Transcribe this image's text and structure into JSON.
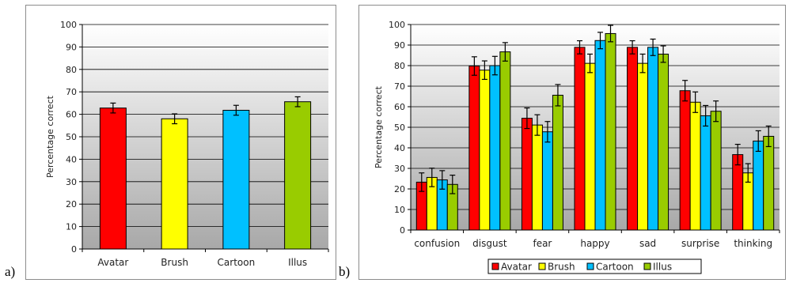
{
  "panel_labels": {
    "a": "a)",
    "b": "b)"
  },
  "chart_data": [
    {
      "type": "bar",
      "ylabel": "Percentage correct",
      "ylim": [
        0,
        100
      ],
      "yticks": [
        0,
        10,
        20,
        30,
        40,
        50,
        60,
        70,
        80,
        90,
        100
      ],
      "grid": true,
      "legend": "none",
      "categories": [
        "Avatar",
        "Brush",
        "Cartoon",
        "Illus"
      ],
      "values": [
        62.8,
        58,
        61.8,
        65.6
      ],
      "errors": [
        2.2,
        2.2,
        2.2,
        2.2
      ],
      "colors": [
        "#ff0000",
        "#ffff00",
        "#00c0ff",
        "#99cc00"
      ]
    },
    {
      "type": "bar",
      "ylabel": "Percentage correct",
      "ylim": [
        0,
        100
      ],
      "yticks": [
        0,
        10,
        20,
        30,
        40,
        50,
        60,
        70,
        80,
        90,
        100
      ],
      "grid": true,
      "legend": "bottom",
      "categories": [
        "confusion",
        "disgust",
        "fear",
        "happy",
        "sad",
        "surprise",
        "thinking"
      ],
      "series": [
        {
          "name": "Avatar",
          "color": "#ff0000",
          "values": [
            23.3,
            79.8,
            54.4,
            88.9,
            88.9,
            67.8,
            36.7
          ],
          "errors": [
            4.5,
            4.5,
            5,
            3.2,
            3.2,
            5,
            5
          ]
        },
        {
          "name": "Brush",
          "color": "#ffff00",
          "values": [
            25.6,
            77.8,
            51.1,
            81.1,
            81.1,
            62.2,
            27.8
          ],
          "errors": [
            4.5,
            4.5,
            5,
            4.5,
            4.5,
            5,
            4.5
          ]
        },
        {
          "name": "Cartoon",
          "color": "#00c0ff",
          "values": [
            24.4,
            80,
            47.8,
            92.2,
            88.9,
            55.6,
            43.3
          ],
          "errors": [
            4.5,
            4.5,
            5,
            4,
            4,
            5,
            5
          ]
        },
        {
          "name": "Illus",
          "color": "#99cc00",
          "values": [
            22.2,
            86.7,
            65.6,
            95.6,
            85.6,
            57.8,
            45.6
          ],
          "errors": [
            4.5,
            4.5,
            5.2,
            4,
            4,
            5,
            5
          ]
        }
      ]
    }
  ]
}
